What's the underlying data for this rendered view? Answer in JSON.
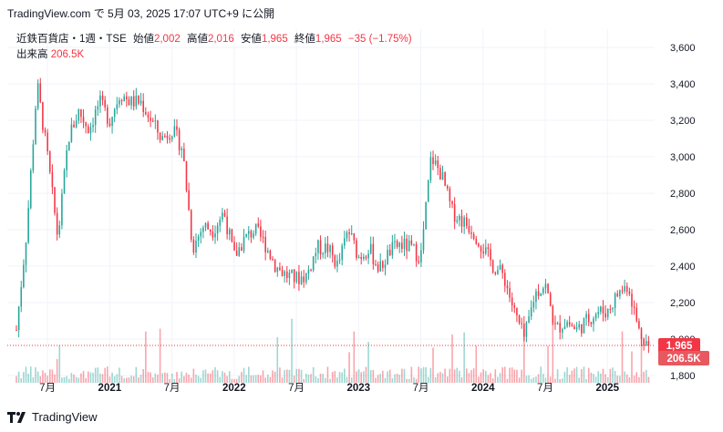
{
  "header": {
    "text": "TradingView.com で 5月 03, 2025 17:07 UTC+9 に公開"
  },
  "legend": {
    "symbol": "近鉄百貨店・1週・TSE",
    "open_label": "始値",
    "open": "2,002",
    "high_label": "高値",
    "high": "2,016",
    "low_label": "安値",
    "low": "1,965",
    "close_label": "終値",
    "close": "1,965",
    "change": "−35 (−1.75%)",
    "volume_label": "出来高",
    "volume": "206.5K"
  },
  "brand": {
    "name": "TradingView",
    "icon": "tradingview-logo-icon"
  },
  "colors": {
    "up": "#26a69a",
    "down": "#f23645",
    "grid": "#f0f3fa",
    "axis_text": "#131722"
  },
  "chart_data": {
    "type": "candlestick",
    "title": "近鉄百貨店・1週・TSE",
    "ylim": [
      1800,
      3700
    ],
    "y_ticks": [
      "3,600",
      "3,400",
      "3,200",
      "3,000",
      "2,800",
      "2,600",
      "2,400",
      "2,200",
      "2,000",
      "1,800"
    ],
    "x_ticks": [
      "7月",
      "2021",
      "7月",
      "2022",
      "7月",
      "2023",
      "7月",
      "2024",
      "7月",
      "2025"
    ],
    "x_range": [
      "2020-04",
      "2025-05"
    ],
    "grid": true,
    "last_price": "1,965",
    "last_volume": "206.5K",
    "series_anchors": [
      [
        "2020-04",
        2050
      ],
      [
        "2020-05",
        2600
      ],
      [
        "2020-06",
        3400
      ],
      [
        "2020-07",
        3000
      ],
      [
        "2020-08",
        2550
      ],
      [
        "2020-09",
        3100
      ],
      [
        "2020-10",
        3250
      ],
      [
        "2020-11",
        3150
      ],
      [
        "2020-12",
        3300
      ],
      [
        "2021-01",
        3200
      ],
      [
        "2021-02",
        3350
      ],
      [
        "2021-03",
        3300
      ],
      [
        "2021-04",
        3300
      ],
      [
        "2021-05",
        3200
      ],
      [
        "2021-06",
        3100
      ],
      [
        "2021-07",
        3150
      ],
      [
        "2021-08",
        3050
      ],
      [
        "2021-09",
        2500
      ],
      [
        "2021-10",
        2620
      ],
      [
        "2021-11",
        2600
      ],
      [
        "2021-12",
        2700
      ],
      [
        "2022-01",
        2450
      ],
      [
        "2022-02",
        2550
      ],
      [
        "2022-03",
        2600
      ],
      [
        "2022-04",
        2520
      ],
      [
        "2022-05",
        2400
      ],
      [
        "2022-06",
        2350
      ],
      [
        "2022-07",
        2330
      ],
      [
        "2022-08",
        2350
      ],
      [
        "2022-09",
        2500
      ],
      [
        "2022-10",
        2500
      ],
      [
        "2022-11",
        2400
      ],
      [
        "2022-12",
        2600
      ],
      [
        "2023-01",
        2450
      ],
      [
        "2023-02",
        2500
      ],
      [
        "2023-03",
        2380
      ],
      [
        "2023-04",
        2480
      ],
      [
        "2023-05",
        2520
      ],
      [
        "2023-06",
        2500
      ],
      [
        "2023-07",
        2450
      ],
      [
        "2023-08",
        3000
      ],
      [
        "2023-09",
        2900
      ],
      [
        "2023-10",
        2700
      ],
      [
        "2023-11",
        2650
      ],
      [
        "2023-12",
        2600
      ],
      [
        "2024-01",
        2500
      ],
      [
        "2024-02",
        2400
      ],
      [
        "2024-03",
        2350
      ],
      [
        "2024-04",
        2150
      ],
      [
        "2024-05",
        2000
      ],
      [
        "2024-06",
        2250
      ],
      [
        "2024-07",
        2300
      ],
      [
        "2024-08",
        2050
      ],
      [
        "2024-09",
        2100
      ],
      [
        "2024-10",
        2050
      ],
      [
        "2024-11",
        2100
      ],
      [
        "2024-12",
        2150
      ],
      [
        "2025-01",
        2150
      ],
      [
        "2025-02",
        2250
      ],
      [
        "2025-03",
        2300
      ],
      [
        "2025-04",
        2050
      ],
      [
        "2025-05",
        1965
      ]
    ]
  }
}
